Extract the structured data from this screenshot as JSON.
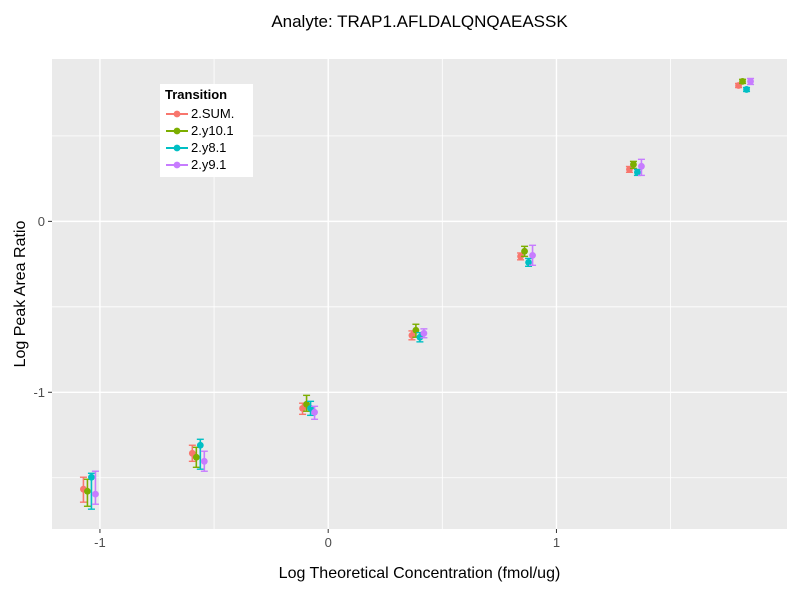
{
  "title": "Analyte: TRAP1.AFLDALQNQAEASSK",
  "colors": {
    "panel_background": "#EAEAEA",
    "gridline": "#FFFFFF",
    "tick_label": "#4D4D4D",
    "tick_mark": "#333333",
    "text": "#000000"
  },
  "chart_data": {
    "type": "scatter",
    "title": "Analyte: TRAP1.AFLDALQNQAEASSK",
    "xlabel": "Log Theoretical Concentration (fmol/ug)",
    "ylabel": "Log Peak Area Ratio",
    "xlim": [
      -1.21,
      2.01
    ],
    "ylim": [
      -1.8,
      0.95
    ],
    "grid": true,
    "x_major_ticks": [
      {
        "value": -1,
        "label": "-1"
      },
      {
        "value": 0,
        "label": "0"
      },
      {
        "value": 1,
        "label": "1"
      }
    ],
    "x_minor_ticks": [
      -0.5,
      0.5,
      1.5
    ],
    "y_major_ticks": [
      {
        "value": 0,
        "label": "0"
      },
      {
        "value": -1,
        "label": "-1"
      }
    ],
    "y_minor_ticks": [
      0.5,
      -0.5,
      -1.5
    ],
    "legend": {
      "title": "Transition",
      "position": "inside-top-left"
    },
    "x": [
      -1.046,
      -0.569,
      -0.086,
      0.393,
      0.869,
      1.346,
      1.824
    ],
    "series": [
      {
        "name": "2.SUM.",
        "color": "#F8766D",
        "y": [
          -1.567,
          -1.357,
          -1.094,
          -0.667,
          -0.205,
          0.304,
          0.795
        ],
        "ymin": [
          -1.643,
          -1.404,
          -1.129,
          -0.693,
          -0.225,
          0.287,
          0.783
        ],
        "ymax": [
          -1.497,
          -1.31,
          -1.064,
          -0.641,
          -0.185,
          0.321,
          0.807
        ]
      },
      {
        "name": "2.y10.1",
        "color": "#7CAE00",
        "y": [
          -1.579,
          -1.38,
          -1.07,
          -0.637,
          -0.175,
          0.333,
          0.819
        ],
        "ymin": [
          -1.667,
          -1.439,
          -1.111,
          -0.678,
          -0.205,
          0.31,
          0.807
        ],
        "ymax": [
          -1.509,
          -1.322,
          -1.018,
          -0.602,
          -0.146,
          0.351,
          0.831
        ]
      },
      {
        "name": "2.y8.1",
        "color": "#00BFC4",
        "y": [
          -1.497,
          -1.31,
          -1.094,
          -0.678,
          -0.24,
          0.287,
          0.772
        ],
        "ymin": [
          -1.684,
          -1.45,
          -1.135,
          -0.705,
          -0.263,
          0.269,
          0.76
        ],
        "ymax": [
          -1.474,
          -1.275,
          -1.053,
          -0.651,
          -0.217,
          0.304,
          0.783
        ]
      },
      {
        "name": "2.y9.1",
        "color": "#C77CFF",
        "y": [
          -1.596,
          -1.404,
          -1.117,
          -0.655,
          -0.199,
          0.322,
          0.819
        ],
        "ymin": [
          -1.655,
          -1.462,
          -1.158,
          -0.681,
          -0.257,
          0.269,
          0.801
        ],
        "ymax": [
          -1.462,
          -1.345,
          -1.082,
          -0.629,
          -0.14,
          0.363,
          0.836
        ]
      }
    ]
  }
}
